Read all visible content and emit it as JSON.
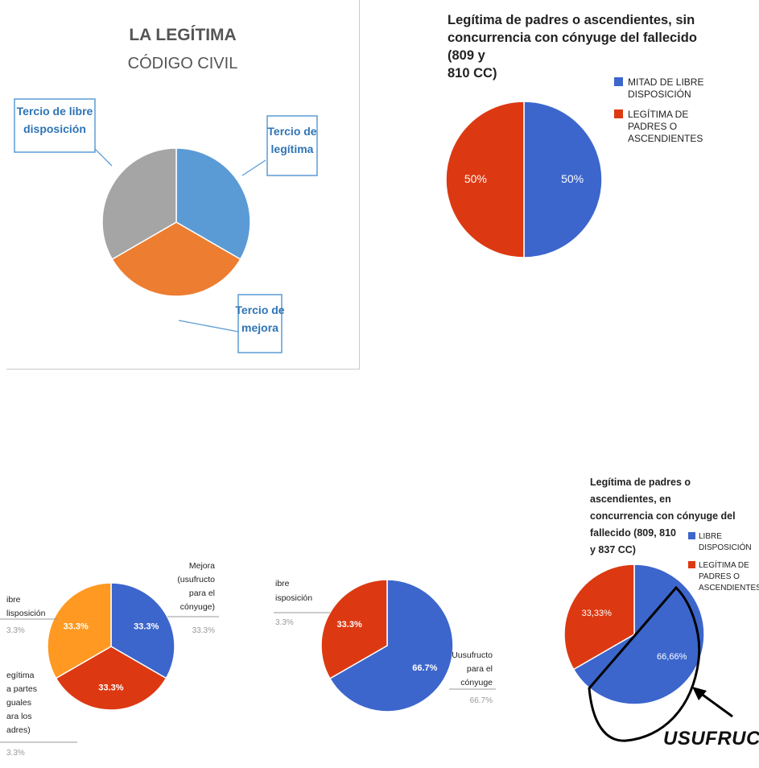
{
  "chart_data": [
    {
      "type": "pie",
      "title": "LA LEGÍTIMA",
      "subtitle": "CÓDIGO CIVIL",
      "slices": [
        {
          "label": "Tercio de legítima",
          "value": 33.3,
          "color": "#5b9bd5"
        },
        {
          "label": "Tercio de mejora",
          "value": 33.3,
          "color": "#ed7d31"
        },
        {
          "label": "Tercio de libre disposición",
          "value": 33.3,
          "color": "#a5a5a5"
        }
      ],
      "callouts": {
        "a": [
          "Tercio de",
          "legítima"
        ],
        "b": [
          "Tercio de",
          "mejora"
        ],
        "c": [
          "Tercio de libre",
          "disposición"
        ]
      }
    },
    {
      "type": "pie",
      "title": "Legítima de padres o ascendientes, sin concurrencia con cónyuge del fallecido (809 y 810 CC)",
      "title_lines": [
        "Legítima de padres o ascendientes, sin",
        "concurrencia con cónyuge del fallecido (809 y",
        "810 CC)"
      ],
      "slices": [
        {
          "label": "MITAD DE LIBRE DISPOSICIÓN",
          "value": 50,
          "color": "#3c66cc",
          "data_label": "50%"
        },
        {
          "label": "LEGÍTIMA DE PADRES O ASCENDIENTES",
          "value": 50,
          "color": "#dc3912",
          "data_label": "50%"
        }
      ],
      "legend": [
        {
          "lines": [
            "MITAD DE LIBRE",
            "DISPOSICIÓN"
          ],
          "color": "#3c66cc"
        },
        {
          "lines": [
            "LEGÍTIMA DE",
            "PADRES O",
            "ASCENDIENTES"
          ],
          "color": "#dc3912"
        }
      ],
      "legend_position": "right"
    },
    {
      "type": "pie",
      "slices": [
        {
          "label": "Mejora (usufructo para el cónyuge)",
          "value": 33.3,
          "color": "#3c66cc",
          "data_label": "33.3%"
        },
        {
          "label": "Legítima a partes iguales para los padres",
          "value": 33.3,
          "color": "#dc3912",
          "data_label": "33.3%"
        },
        {
          "label": "Libre disposición",
          "value": 33.3,
          "color": "#ff9922",
          "data_label": "33.3%"
        }
      ],
      "side_labels": {
        "right": [
          "Mejora",
          "(usufructo",
          "para el",
          "cónyuge)"
        ],
        "right_pct": "33.3%",
        "left_top": [
          "ibre",
          "lisposición"
        ],
        "left_top_pct": "3.3%",
        "left_bottom": [
          "egítima",
          "a partes",
          "guales",
          "ara los",
          "adres)"
        ],
        "left_bottom_pct": "3.3%"
      }
    },
    {
      "type": "pie",
      "slices": [
        {
          "label": "Uusufructo para el cónyuge",
          "value": 66.7,
          "color": "#3c66cc",
          "data_label": "66.7%"
        },
        {
          "label": "Libre disposición",
          "value": 33.3,
          "color": "#dc3912",
          "data_label": "33.3%"
        }
      ],
      "side_labels": {
        "right": [
          "Uusufructo",
          "para el",
          "cónyuge"
        ],
        "right_pct": "66.7%",
        "left": [
          "ibre",
          "isposición"
        ],
        "left_pct": "3.3%"
      }
    },
    {
      "type": "pie",
      "title": "Legítima de padres o ascendientes, en concurrencia con cónyuge del fallecido (809, 810 y 837 CC)",
      "title_lines": [
        "Legítima de padres o ascendientes, en",
        "concurrencia con cónyuge del fallecido (809, 810",
        "y 837 CC)"
      ],
      "slices": [
        {
          "label": "LIBRE DISPOSICIÓN",
          "value": 66.66,
          "color": "#3c66cc",
          "data_label": "66,66%"
        },
        {
          "label": "LEGÍTIMA DE PADRES O ASCENDIENTES",
          "value": 33.33,
          "color": "#dc3912",
          "data_label": "33,33%"
        }
      ],
      "legend": [
        {
          "lines": [
            "LIBRE",
            "DISPOSICIÓN"
          ],
          "color": "#3c66cc"
        },
        {
          "lines": [
            "LEGÍTIMA DE",
            "PADRES O",
            "ASCENDIENTES"
          ],
          "color": "#dc3912"
        }
      ],
      "legend_position": "right",
      "annotation": "USUFRUCTO"
    }
  ]
}
